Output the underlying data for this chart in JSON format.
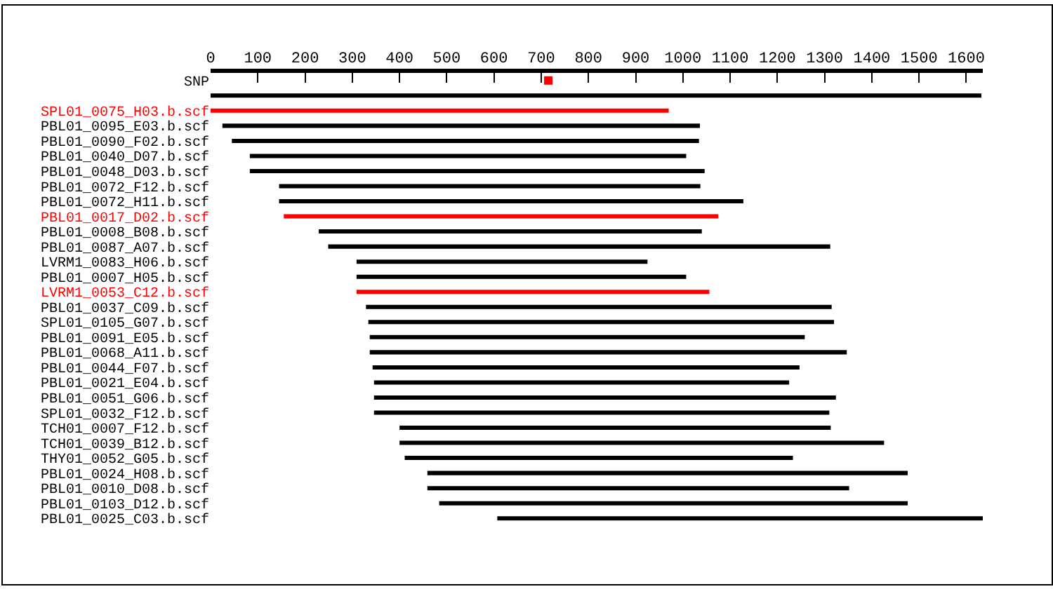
{
  "chart_data": {
    "type": "bar",
    "orientation": "horizontal",
    "categories": [
      "SNP",
      null,
      "SPL01_0075_H03.b.scf",
      "PBL01_0095_E03.b.scf",
      "PBL01_0090_F02.b.scf",
      "PBL01_0040_D07.b.scf",
      "PBL01_0048_D03.b.scf",
      "PBL01_0072_F12.b.scf",
      "PBL01_0072_H11.b.scf",
      "PBL01_0017_D02.b.scf",
      "PBL01_0008_B08.b.scf",
      "PBL01_0087_A07.b.scf",
      "LVRM1_0083_H06.b.scf",
      "PBL01_0007_H05.b.scf",
      "LVRM1_0053_C12.b.scf",
      "PBL01_0037_C09.b.scf",
      "SPL01_0105_G07.b.scf",
      "PBL01_0091_E05.b.scf",
      "PBL01_0068_A11.b.scf",
      "PBL01_0044_F07.b.scf",
      "PBL01_0021_E04.b.scf",
      "PBL01_0051_G06.b.scf",
      "SPL01_0032_F12.b.scf",
      "TCH01_0007_F12.b.scf",
      "TCH01_0039_B12.b.scf",
      "THY01_0052_G05.b.scf",
      "PBL01_0024_H08.b.scf",
      "PBL01_0010_D08.b.scf",
      "PBL01_0103_D12.b.scf",
      "PBL01_0025_C03.b.scf"
    ],
    "series": [
      {
        "base": [
          null,
          0,
          0,
          25,
          45,
          83,
          83,
          145,
          145,
          155,
          229,
          249,
          309,
          309,
          309,
          329,
          334,
          337,
          337,
          343,
          346,
          346,
          346,
          400,
          400,
          411,
          459,
          459,
          484,
          607
        ],
        "values": [
          null,
          1632,
          970,
          1011,
          989,
          924,
          963,
          892,
          983,
          920,
          811,
          1063,
          616,
          698,
          747,
          986,
          986,
          921,
          1010,
          904,
          879,
          978,
          964,
          913,
          1026,
          822,
          1017,
          893,
          992,
          1028
        ],
        "colors": [
          null,
          "#000000",
          "#ff0000",
          "#000000",
          "#000000",
          "#000000",
          "#000000",
          "#000000",
          "#000000",
          "#ff0000",
          "#000000",
          "#000000",
          "#000000",
          "#000000",
          "#ff0000",
          "#000000",
          "#000000",
          "#000000",
          "#000000",
          "#000000",
          "#000000",
          "#000000",
          "#000000",
          "#000000",
          "#000000",
          "#000000",
          "#000000",
          "#000000",
          "#000000",
          "#000000"
        ]
      },
      {
        "type": "scatter",
        "marker": "square",
        "color": "#ff0000",
        "values": [
          715,
          null,
          null,
          null,
          null,
          null,
          null,
          null,
          null,
          null,
          null,
          null,
          null,
          null,
          null,
          null,
          null,
          null,
          null,
          null,
          null,
          null,
          null,
          null,
          null,
          null,
          null,
          null,
          null,
          null
        ]
      }
    ],
    "xlim": [
      0,
      1635
    ],
    "xticks": [
      0,
      100,
      200,
      300,
      400,
      500,
      600,
      700,
      800,
      900,
      1000,
      1100,
      1200,
      1300,
      1400,
      1500,
      1600
    ]
  }
}
